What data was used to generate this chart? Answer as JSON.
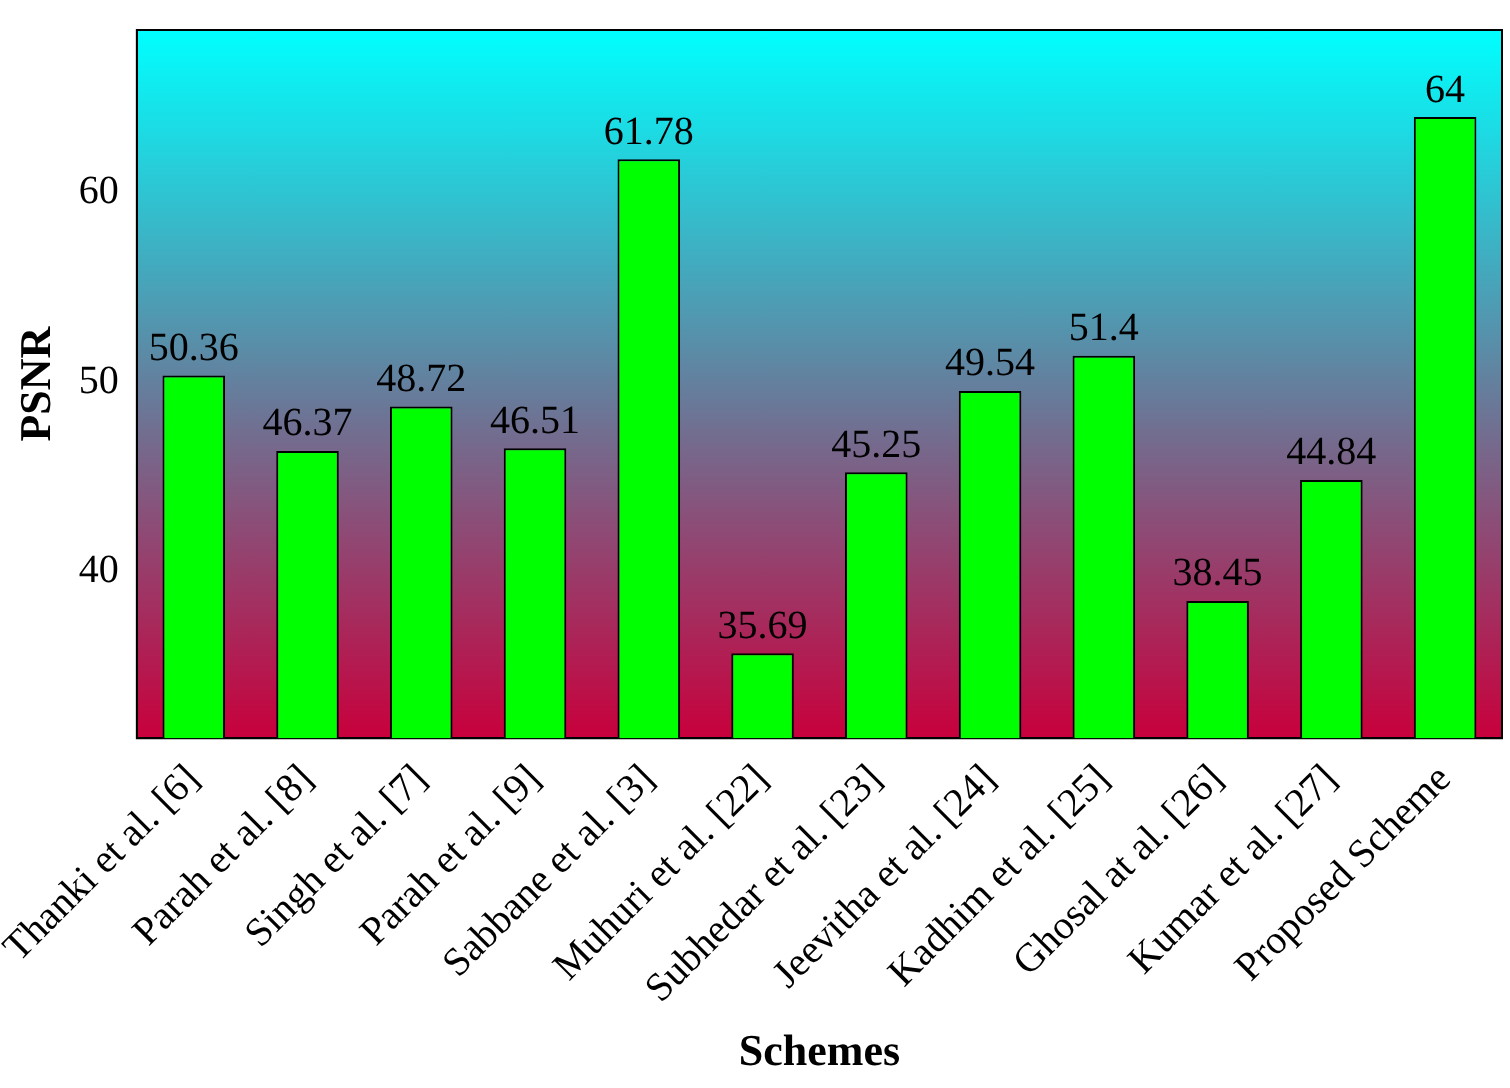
{
  "chart_data": {
    "type": "bar",
    "xlabel": "Schemes",
    "ylabel": "PSNR",
    "categories": [
      "Thanki et al. [6]",
      "Parah et al. [8]",
      "Singh et al. [7]",
      "Parah et al. [9]",
      "Sabbane et al. [3]",
      "Muhuri et al. [22]",
      "Subhedar et al. [23]",
      "Jeevitha et al. [24]",
      "Kadhim et al. [25]",
      "Ghosal at al. [26]",
      "Kumar et al. [27]",
      "Proposed Scheme"
    ],
    "values": [
      50.36,
      46.37,
      48.72,
      46.51,
      61.78,
      35.69,
      45.25,
      49.54,
      51.4,
      38.45,
      44.84,
      64
    ],
    "color": "#00ff00",
    "ylim": [
      31.2,
      68.6
    ],
    "yticks": [
      40,
      50,
      60
    ],
    "grid": false,
    "legend": false,
    "data_labels": true
  }
}
